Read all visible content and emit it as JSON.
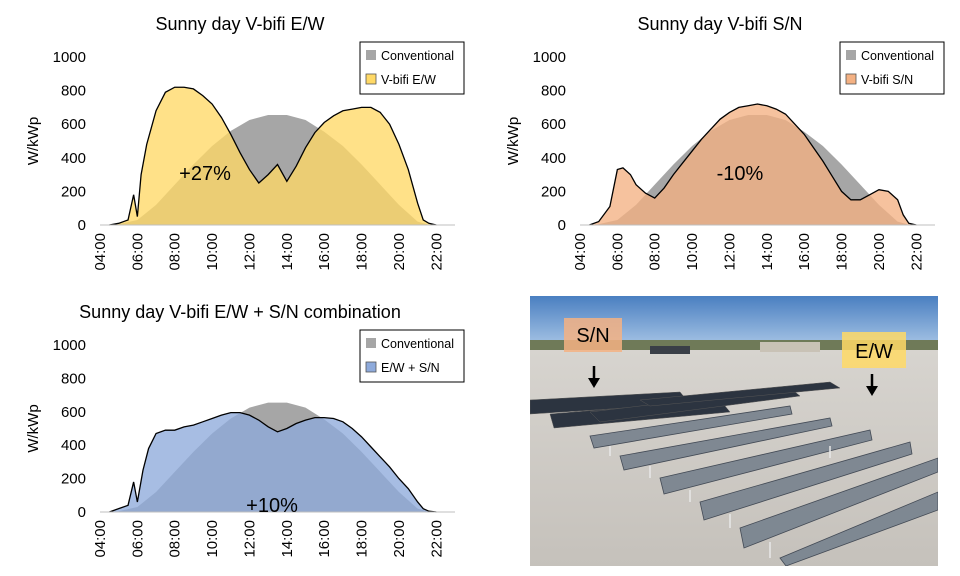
{
  "chart_data": [
    {
      "type": "area",
      "title": "Sunny day V-bifi E/W",
      "ylabel": "W/kWp",
      "xlabel": "",
      "ylim": [
        0,
        1000
      ],
      "yticks": [
        0,
        200,
        400,
        600,
        800,
        1000
      ],
      "xlim": [
        4,
        23
      ],
      "xticks": [
        "04:00",
        "06:00",
        "08:00",
        "10:00",
        "12:00",
        "14:00",
        "16:00",
        "18:00",
        "20:00",
        "22:00"
      ],
      "annotation": "+27%",
      "legend": [
        "Conventional",
        "V-bifi E/W"
      ],
      "series": [
        {
          "name": "Conventional",
          "color": "#a6a6a6",
          "x": [
            5,
            6,
            7,
            8,
            9,
            10,
            11,
            12,
            13,
            14,
            15,
            16,
            17,
            18,
            19,
            20,
            21,
            21.5
          ],
          "values": [
            5,
            30,
            120,
            240,
            360,
            470,
            560,
            625,
            655,
            655,
            625,
            555,
            470,
            360,
            240,
            120,
            20,
            5
          ]
        },
        {
          "name": "V-bifi E/W",
          "color": "#ffd966",
          "outline": "#000000",
          "x": [
            4.5,
            5,
            5.5,
            5.8,
            6,
            6.2,
            6.5,
            7,
            7.5,
            8,
            8.5,
            9,
            9.5,
            10,
            10.5,
            11,
            11.5,
            12,
            12.5,
            13,
            13.5,
            14,
            14.5,
            15,
            15.5,
            16,
            16.5,
            17,
            17.5,
            18,
            18.5,
            19,
            19.5,
            20,
            20.5,
            21,
            21.3,
            21.6,
            22
          ],
          "values": [
            0,
            10,
            30,
            180,
            50,
            300,
            480,
            680,
            790,
            820,
            820,
            810,
            770,
            720,
            640,
            540,
            430,
            330,
            250,
            300,
            360,
            260,
            350,
            460,
            550,
            610,
            650,
            680,
            690,
            700,
            700,
            670,
            600,
            480,
            330,
            130,
            30,
            10,
            0
          ]
        }
      ]
    },
    {
      "type": "area",
      "title": "Sunny day V-bifi S/N",
      "ylabel": "W/kWp",
      "xlabel": "",
      "ylim": [
        0,
        1000
      ],
      "yticks": [
        0,
        200,
        400,
        600,
        800,
        1000
      ],
      "xlim": [
        4,
        23
      ],
      "xticks": [
        "04:00",
        "06:00",
        "08:00",
        "10:00",
        "12:00",
        "14:00",
        "16:00",
        "18:00",
        "20:00",
        "22:00"
      ],
      "annotation": "-10%",
      "legend": [
        "Conventional",
        "V-bifi S/N"
      ],
      "series": [
        {
          "name": "Conventional",
          "color": "#a6a6a6",
          "x": [
            5,
            6,
            7,
            8,
            9,
            10,
            11,
            12,
            13,
            14,
            15,
            16,
            17,
            18,
            19,
            20,
            21,
            21.5
          ],
          "values": [
            5,
            30,
            120,
            240,
            360,
            470,
            560,
            625,
            655,
            655,
            625,
            555,
            470,
            360,
            240,
            120,
            20,
            5
          ]
        },
        {
          "name": "V-bifi S/N",
          "color": "#f4b183",
          "outline": "#000000",
          "x": [
            4.5,
            5,
            5.6,
            6,
            6.3,
            6.7,
            7,
            7.5,
            8,
            8.5,
            9,
            9.5,
            10,
            10.5,
            11,
            11.5,
            12,
            12.5,
            13,
            13.5,
            14,
            14.5,
            15,
            15.5,
            16,
            16.5,
            17,
            17.5,
            18,
            18.5,
            19,
            19.5,
            20,
            20.5,
            21,
            21.3,
            21.6,
            22
          ],
          "values": [
            0,
            20,
            110,
            330,
            340,
            300,
            240,
            190,
            160,
            220,
            300,
            370,
            440,
            510,
            570,
            630,
            670,
            700,
            710,
            720,
            710,
            690,
            660,
            600,
            540,
            460,
            380,
            290,
            200,
            150,
            150,
            180,
            210,
            200,
            150,
            60,
            10,
            0
          ]
        }
      ]
    },
    {
      "type": "area",
      "title": "Sunny day V-bifi E/W + S/N combination",
      "ylabel": "W/kWp",
      "xlabel": "",
      "ylim": [
        0,
        1000
      ],
      "yticks": [
        0,
        200,
        400,
        600,
        800,
        1000
      ],
      "xlim": [
        4,
        23
      ],
      "xticks": [
        "04:00",
        "06:00",
        "08:00",
        "10:00",
        "12:00",
        "14:00",
        "16:00",
        "18:00",
        "20:00",
        "22:00"
      ],
      "annotation": "+10%",
      "legend": [
        "Conventional",
        "E/W + S/N"
      ],
      "series": [
        {
          "name": "Conventional",
          "color": "#a6a6a6",
          "x": [
            5,
            6,
            7,
            8,
            9,
            10,
            11,
            12,
            13,
            14,
            15,
            16,
            17,
            18,
            19,
            20,
            21,
            21.5
          ],
          "values": [
            5,
            30,
            120,
            240,
            360,
            470,
            560,
            625,
            655,
            655,
            625,
            555,
            470,
            360,
            240,
            120,
            20,
            5
          ]
        },
        {
          "name": "E/W + S/N",
          "color": "#8eaadb",
          "outline": "#000000",
          "x": [
            4.5,
            5,
            5.5,
            5.8,
            6,
            6.3,
            6.6,
            7,
            7.5,
            8,
            8.5,
            9,
            9.5,
            10,
            10.5,
            11,
            11.5,
            12,
            12.5,
            13,
            13.5,
            14,
            14.5,
            15,
            15.5,
            16,
            16.5,
            17,
            17.5,
            18,
            18.5,
            19,
            19.5,
            20,
            20.5,
            21,
            21.3,
            21.6,
            22
          ],
          "values": [
            0,
            20,
            40,
            180,
            60,
            250,
            380,
            470,
            490,
            490,
            510,
            520,
            540,
            560,
            580,
            595,
            595,
            580,
            550,
            510,
            480,
            500,
            530,
            550,
            565,
            565,
            560,
            540,
            500,
            450,
            390,
            330,
            270,
            200,
            140,
            60,
            20,
            5,
            0
          ]
        }
      ]
    }
  ],
  "photo": {
    "labels": [
      "S/N",
      "E/W"
    ],
    "label_colors": [
      "#f4b183",
      "#ffd966"
    ]
  }
}
